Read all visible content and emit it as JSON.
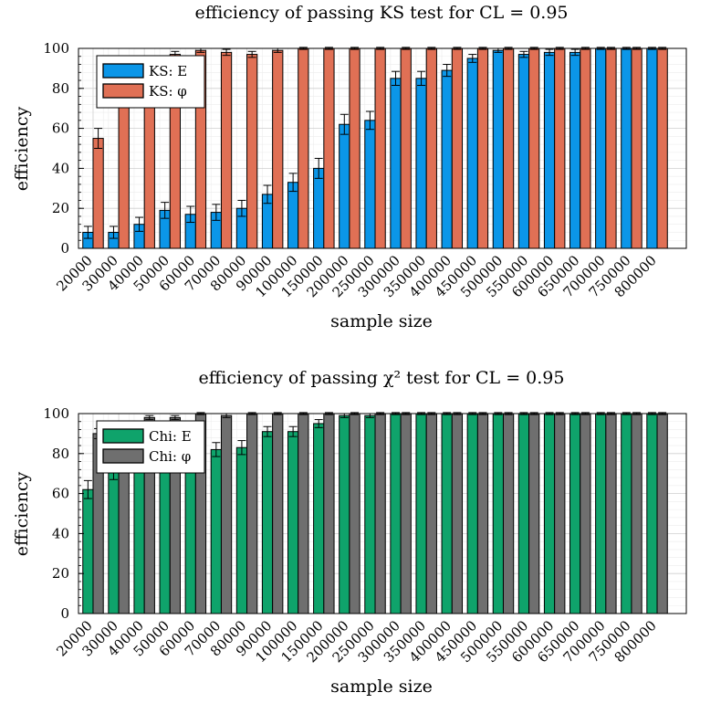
{
  "chart_data": [
    {
      "type": "bar",
      "title": "efficiency of passing KS test for CL  = 0.95",
      "xlabel": "sample size",
      "ylabel": "efficiency",
      "ylim": [
        0,
        100
      ],
      "yticks": [
        0,
        20,
        40,
        60,
        80,
        100
      ],
      "grid": true,
      "legend": "top-left",
      "categories": [
        "20000",
        "30000",
        "40000",
        "50000",
        "60000",
        "70000",
        "80000",
        "90000",
        "100000",
        "150000",
        "200000",
        "250000",
        "300000",
        "350000",
        "400000",
        "450000",
        "500000",
        "550000",
        "600000",
        "650000",
        "700000",
        "750000",
        "800000"
      ],
      "series": [
        {
          "name": "KS: E",
          "color": "#0b96e8",
          "values": [
            8,
            8,
            12,
            19,
            17,
            18,
            20,
            27,
            33,
            40,
            62,
            64,
            85,
            85,
            89,
            95,
            99,
            97,
            98,
            98,
            100,
            100,
            100
          ],
          "errors": [
            3,
            3,
            3.5,
            4,
            4,
            4,
            4,
            4.5,
            4.5,
            5,
            5,
            4.5,
            3.5,
            3.5,
            3,
            2,
            1,
            1.5,
            1.5,
            1.5,
            0.5,
            0.5,
            0.5
          ]
        },
        {
          "name": "KS: φ",
          "color": "#e07055",
          "values": [
            55,
            80,
            80,
            97,
            99,
            98,
            97,
            99,
            100,
            100,
            100,
            100,
            100,
            100,
            100,
            100,
            100,
            100,
            100,
            100,
            100,
            100,
            100
          ],
          "errors": [
            5,
            4,
            4,
            1.5,
            1,
            1.5,
            1.5,
            1,
            0.5,
            0.5,
            0.5,
            0.5,
            0.5,
            0.5,
            0.5,
            0.5,
            0.5,
            0.5,
            0.5,
            0.5,
            0.5,
            0.5,
            0.5
          ]
        }
      ]
    },
    {
      "type": "bar",
      "title": "efficiency of passing χ² test for CL  = 0.95",
      "xlabel": "sample size",
      "ylabel": "efficiency",
      "ylim": [
        0,
        100
      ],
      "yticks": [
        0,
        20,
        40,
        60,
        80,
        100
      ],
      "grid": true,
      "legend": "top-left",
      "categories": [
        "20000",
        "30000",
        "40000",
        "50000",
        "60000",
        "70000",
        "80000",
        "90000",
        "100000",
        "150000",
        "200000",
        "250000",
        "300000",
        "350000",
        "400000",
        "450000",
        "500000",
        "550000",
        "600000",
        "650000",
        "700000",
        "750000",
        "800000"
      ],
      "series": [
        {
          "name": "Chi: E",
          "color": "#0fa36b",
          "values": [
            62,
            71,
            78,
            80,
            82,
            82,
            83,
            91,
            91,
            95,
            99,
            99,
            100,
            100,
            100,
            100,
            100,
            100,
            100,
            100,
            100,
            100,
            100
          ],
          "errors": [
            4.5,
            4,
            3.5,
            3.5,
            3.5,
            3.5,
            3.5,
            2.5,
            2.5,
            2,
            1,
            1,
            0.5,
            0.5,
            0.5,
            0.5,
            0.5,
            0.5,
            0.5,
            0.5,
            0.5,
            0.5,
            0.5
          ]
        },
        {
          "name": "Chi: φ",
          "color": "#6f6f6f",
          "values": [
            90,
            92,
            98,
            98,
            100,
            99,
            100,
            100,
            100,
            100,
            100,
            100,
            100,
            100,
            100,
            100,
            100,
            100,
            100,
            100,
            100,
            100,
            100
          ],
          "errors": [
            2.5,
            2,
            1,
            1,
            0.5,
            1,
            0.5,
            0.5,
            0.5,
            0.5,
            0.5,
            0.5,
            0.5,
            0.5,
            0.5,
            0.5,
            0.5,
            0.5,
            0.5,
            0.5,
            0.5,
            0.5,
            0.5
          ]
        }
      ]
    }
  ]
}
